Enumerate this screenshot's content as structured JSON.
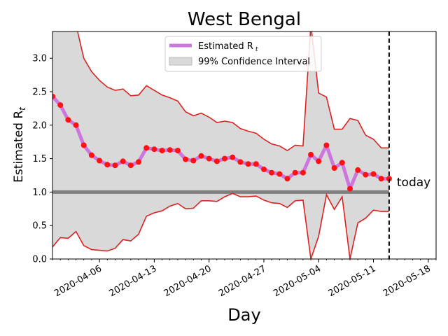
{
  "chart_data": {
    "type": "line",
    "title": "West Bengal",
    "xlabel": "Day",
    "ylabel_text": "Estimated R",
    "ylabel_sub": "t",
    "ylim": [
      0,
      3.4
    ],
    "xlim": [
      "2020-03-31",
      "2020-05-19"
    ],
    "yticks": [
      0.0,
      0.5,
      1.0,
      1.5,
      2.0,
      2.5,
      3.0
    ],
    "ytick_labels": [
      "0.0",
      "0.5",
      "1.0",
      "1.5",
      "2.0",
      "2.5",
      "3.0"
    ],
    "xticks": [
      "2020-04-06",
      "2020-04-13",
      "2020-04-20",
      "2020-04-27",
      "2020-05-04",
      "2020-05-11",
      "2020-05-18"
    ],
    "reference_line": 1.0,
    "today": "2020-05-13",
    "today_label": "today",
    "legend": {
      "placement": "top-center",
      "estimated_label": "Estimated R",
      "estimated_sub": "t",
      "ci_label": "99% Confidence Interval"
    },
    "colors": {
      "estimate_line": "#cc77dd",
      "points": "#ff1111",
      "bounds": "#dd2222",
      "ci_fill": "#d9d9d9",
      "reference": "#7f7f7f"
    },
    "series": [
      {
        "dates": [
          "2020-03-31",
          "2020-04-01",
          "2020-04-02",
          "2020-04-03",
          "2020-04-04",
          "2020-04-05",
          "2020-04-06",
          "2020-04-07",
          "2020-04-08",
          "2020-04-09",
          "2020-04-10",
          "2020-04-11",
          "2020-04-12",
          "2020-04-13",
          "2020-04-14",
          "2020-04-15",
          "2020-04-16",
          "2020-04-17",
          "2020-04-18",
          "2020-04-19",
          "2020-04-20",
          "2020-04-21",
          "2020-04-22",
          "2020-04-23",
          "2020-04-24",
          "2020-04-25",
          "2020-04-26",
          "2020-04-27",
          "2020-04-28",
          "2020-04-29",
          "2020-04-30",
          "2020-05-01",
          "2020-05-02",
          "2020-05-03",
          "2020-05-04",
          "2020-05-05",
          "2020-05-06",
          "2020-05-07",
          "2020-05-08",
          "2020-05-09",
          "2020-05-10",
          "2020-05-11",
          "2020-05-12",
          "2020-05-13"
        ],
        "estimate": [
          2.43,
          2.3,
          2.08,
          2.0,
          1.7,
          1.55,
          1.47,
          1.41,
          1.4,
          1.46,
          1.4,
          1.45,
          1.66,
          1.64,
          1.62,
          1.63,
          1.62,
          1.49,
          1.47,
          1.54,
          1.5,
          1.46,
          1.5,
          1.52,
          1.45,
          1.42,
          1.42,
          1.34,
          1.29,
          1.27,
          1.2,
          1.29,
          1.29,
          1.56,
          1.46,
          1.7,
          1.36,
          1.44,
          1.05,
          1.33,
          1.26,
          1.27,
          1.2,
          1.2
        ],
        "upper": [
          3.8,
          3.75,
          3.7,
          3.5,
          3.0,
          2.8,
          2.67,
          2.57,
          2.52,
          2.54,
          2.44,
          2.45,
          2.59,
          2.52,
          2.45,
          2.41,
          2.36,
          2.2,
          2.14,
          2.18,
          2.12,
          2.04,
          2.06,
          2.04,
          1.95,
          1.91,
          1.88,
          1.79,
          1.72,
          1.69,
          1.62,
          1.7,
          1.69,
          3.5,
          2.48,
          2.42,
          1.94,
          1.94,
          2.1,
          2.07,
          1.85,
          1.79,
          1.66,
          1.66
        ],
        "lower": [
          0.18,
          0.32,
          0.31,
          0.41,
          0.2,
          0.14,
          0.13,
          0.12,
          0.16,
          0.29,
          0.27,
          0.37,
          0.64,
          0.69,
          0.72,
          0.79,
          0.83,
          0.75,
          0.76,
          0.87,
          0.87,
          0.86,
          0.93,
          0.98,
          0.93,
          0.93,
          0.94,
          0.88,
          0.84,
          0.83,
          0.77,
          0.87,
          0.88,
          0.0,
          0.34,
          0.96,
          0.74,
          0.93,
          0.0,
          0.54,
          0.61,
          0.73,
          0.71,
          0.71
        ]
      }
    ]
  }
}
